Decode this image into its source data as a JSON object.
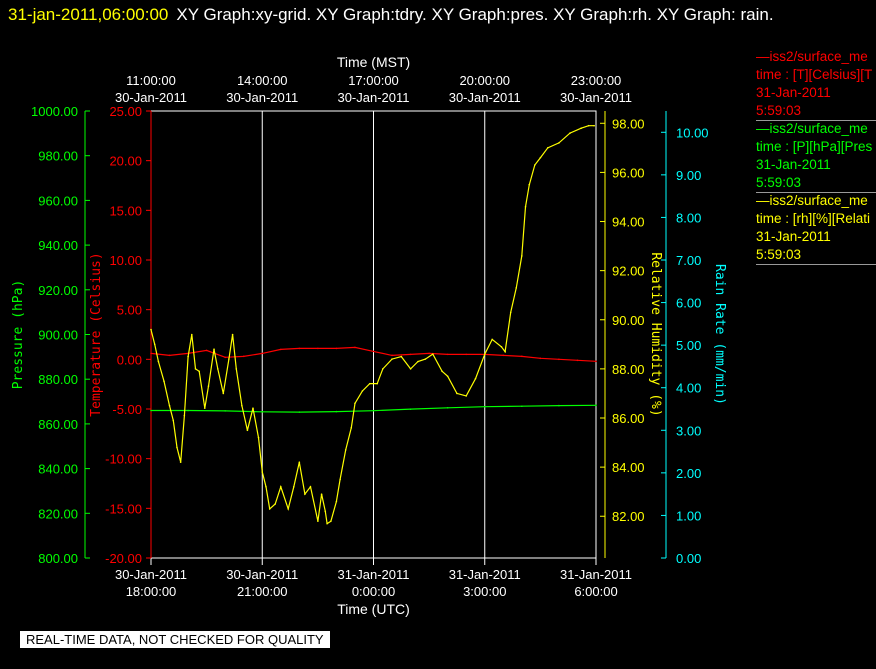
{
  "header": {
    "timestamp": "31-jan-2011,06:00:00",
    "title": "XY Graph:xy-grid.  XY Graph:tdry.  XY Graph:pres.  XY Graph:rh.  XY Graph: rain."
  },
  "legend": [
    {
      "name": "—iss2/surface_me",
      "field": "time : [T][Celsius][T",
      "date": "31-Jan-2011",
      "time": "5:59:03",
      "color": "#ff0000"
    },
    {
      "name": "—iss2/surface_me",
      "field": "time : [P][hPa][Pres",
      "date": "31-Jan-2011",
      "time": "5:59:03",
      "color": "#00ff00"
    },
    {
      "name": "—iss2/surface_me",
      "field": "time : [rh][%][Relati",
      "date": "31-Jan-2011",
      "time": "5:59:03",
      "color": "#ffff00"
    }
  ],
  "note": "REAL-TIME DATA, NOT CHECKED FOR QUALITY",
  "chart_data": {
    "type": "line",
    "top_axis": {
      "label": "Time (MST)",
      "ticks": [
        {
          "t": 0.0,
          "time": "11:00:00",
          "date": "30-Jan-2011"
        },
        {
          "t": 3.0,
          "time": "14:00:00",
          "date": "30-Jan-2011"
        },
        {
          "t": 6.0,
          "time": "17:00:00",
          "date": "30-Jan-2011"
        },
        {
          "t": 9.0,
          "time": "20:00:00",
          "date": "30-Jan-2011"
        },
        {
          "t": 12.0,
          "time": "23:00:00",
          "date": "30-Jan-2011"
        }
      ]
    },
    "bottom_axis": {
      "label": "Time (UTC)",
      "ticks": [
        {
          "t": 0.0,
          "date": "30-Jan-2011",
          "time": "18:00:00"
        },
        {
          "t": 3.0,
          "date": "30-Jan-2011",
          "time": "21:00:00"
        },
        {
          "t": 6.0,
          "date": "31-Jan-2011",
          "time": "0:00:00"
        },
        {
          "t": 9.0,
          "date": "31-Jan-2011",
          "time": "3:00:00"
        },
        {
          "t": 12.0,
          "date": "31-Jan-2011",
          "time": "6:00:00"
        }
      ],
      "range": [
        0,
        12
      ]
    },
    "grid": "vertical lines at bottom-axis ticks",
    "axes": {
      "pressure": {
        "label": "Pressure (hPa)",
        "color": "#00ff00",
        "range": [
          800,
          1000
        ],
        "ticks": [
          "800.00",
          "820.00",
          "840.00",
          "860.00",
          "880.00",
          "900.00",
          "920.00",
          "940.00",
          "960.00",
          "980.00",
          "1000.00"
        ]
      },
      "temperature": {
        "label": "Temperature (Celsius)",
        "color": "#ff0000",
        "range": [
          -20,
          25
        ],
        "ticks": [
          "-20.00",
          "-15.00",
          "-10.00",
          "-5.00",
          "0.00",
          "5.00",
          "10.00",
          "15.00",
          "20.00",
          "25.00"
        ]
      },
      "humidity": {
        "label": "Relative Humidity (%)",
        "color": "#ffff00",
        "range": [
          80.3,
          98.5
        ],
        "ticks": [
          "82.00",
          "84.00",
          "86.00",
          "88.00",
          "90.00",
          "92.00",
          "94.00",
          "96.00",
          "98.00"
        ]
      },
      "rain": {
        "label": "Rain Rate (mm/min)",
        "color": "#00ffff",
        "range": [
          0,
          10.5
        ],
        "ticks": [
          "0.00",
          "1.00",
          "2.00",
          "3.00",
          "4.00",
          "5.00",
          "6.00",
          "7.00",
          "8.00",
          "9.00",
          "10.00"
        ]
      }
    },
    "series": [
      {
        "axis": "temperature",
        "color": "#ff0000",
        "x": [
          0,
          0.5,
          1.0,
          1.5,
          2.0,
          2.5,
          3.0,
          3.5,
          4.0,
          4.5,
          5.0,
          5.5,
          6.0,
          6.5,
          7.0,
          7.5,
          8.0,
          8.5,
          9.0,
          9.5,
          10.0,
          10.5,
          11.0,
          11.5,
          12.0
        ],
        "y": [
          0.6,
          0.4,
          0.6,
          0.9,
          0.2,
          0.3,
          0.6,
          1.0,
          1.1,
          1.1,
          1.1,
          1.2,
          0.8,
          0.4,
          0.5,
          0.6,
          0.5,
          0.5,
          0.5,
          0.4,
          0.3,
          0.1,
          0.0,
          -0.1,
          -0.2
        ]
      },
      {
        "axis": "pressure",
        "color": "#00ff00",
        "x": [
          0,
          1,
          2,
          3,
          4,
          5,
          6,
          7,
          8,
          9,
          10,
          11,
          12
        ],
        "y": [
          866.0,
          866.0,
          865.8,
          865.4,
          865.3,
          865.5,
          865.9,
          866.6,
          867.2,
          867.7,
          867.9,
          868.2,
          868.3
        ]
      },
      {
        "axis": "humidity",
        "color": "#ffff00",
        "x": [
          0,
          0.1,
          0.2,
          0.35,
          0.5,
          0.6,
          0.7,
          0.8,
          0.9,
          1.0,
          1.1,
          1.2,
          1.3,
          1.45,
          1.55,
          1.7,
          1.8,
          1.95,
          2.1,
          2.2,
          2.3,
          2.45,
          2.6,
          2.75,
          2.9,
          3.0,
          3.1,
          3.2,
          3.35,
          3.5,
          3.7,
          3.85,
          4.0,
          4.15,
          4.3,
          4.5,
          4.6,
          4.7,
          4.75,
          4.85,
          5.0,
          5.1,
          5.25,
          5.4,
          5.5,
          5.7,
          5.9,
          6.1,
          6.25,
          6.5,
          6.75,
          7.0,
          7.2,
          7.4,
          7.6,
          7.85,
          8.0,
          8.25,
          8.5,
          8.75,
          9.0,
          9.2,
          9.45,
          9.55,
          9.7,
          9.85,
          10.0,
          10.1,
          10.2,
          10.35,
          10.5,
          10.7,
          11.0,
          11.3,
          11.6,
          11.8,
          11.95
        ],
        "y": [
          89.6,
          89.0,
          88.3,
          87.5,
          86.5,
          85.9,
          84.8,
          84.2,
          86.1,
          88.5,
          89.4,
          88.0,
          87.9,
          86.4,
          87.3,
          88.8,
          88.0,
          87.0,
          88.4,
          89.4,
          88.0,
          86.5,
          85.5,
          86.4,
          85.2,
          83.8,
          83.2,
          82.3,
          82.5,
          83.2,
          82.3,
          83.2,
          84.2,
          82.9,
          83.2,
          81.8,
          82.9,
          82.2,
          81.7,
          81.8,
          82.6,
          83.5,
          84.7,
          85.6,
          86.6,
          87.1,
          87.4,
          87.4,
          88.0,
          88.4,
          88.5,
          88.0,
          88.3,
          88.4,
          88.6,
          87.9,
          87.7,
          87.0,
          86.9,
          87.6,
          88.6,
          89.2,
          88.9,
          88.7,
          90.3,
          91.3,
          92.6,
          94.6,
          95.5,
          96.3,
          96.6,
          97.0,
          97.2,
          97.6,
          97.8,
          97.9,
          97.9
        ]
      }
    ]
  }
}
